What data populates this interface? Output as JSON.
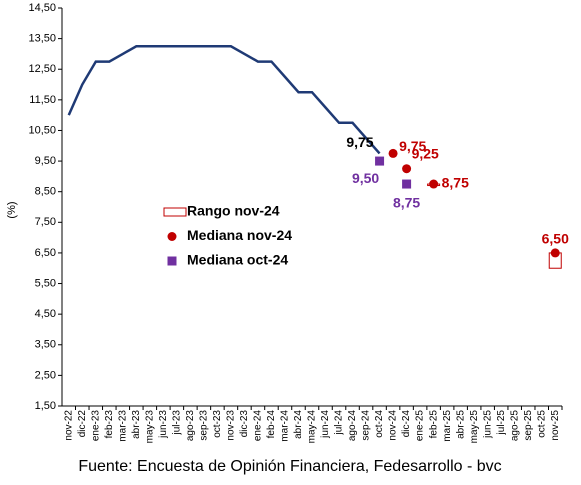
{
  "chart_data": {
    "type": "line",
    "y_axis_label": "(%)",
    "source": "Fuente: Encuesta de Opinión Financiera, Fedesarrollo - bvc",
    "categories": [
      "nov-22",
      "dic-22",
      "ene-23",
      "feb-23",
      "mar-23",
      "abr-23",
      "may-23",
      "jun-23",
      "jul-23",
      "ago-23",
      "sep-23",
      "oct-23",
      "nov-23",
      "dic-23",
      "ene-24",
      "feb-24",
      "mar-24",
      "abr-24",
      "may-24",
      "jun-24",
      "jul-24",
      "ago-24",
      "sep-24",
      "oct-24",
      "nov-24",
      "dic-24",
      "ene-25",
      "feb-25",
      "mar-25",
      "abr-25",
      "may-25",
      "jun-25",
      "jul-25",
      "ago-25",
      "sep-25",
      "oct-25",
      "nov-25"
    ],
    "ylim": [
      1.5,
      14.5
    ],
    "yticks": [
      {
        "value": 1.5,
        "label": "1,50"
      },
      {
        "value": 2.5,
        "label": "2,50"
      },
      {
        "value": 3.5,
        "label": "3,50"
      },
      {
        "value": 4.5,
        "label": "4,50"
      },
      {
        "value": 5.5,
        "label": "5,50"
      },
      {
        "value": 6.5,
        "label": "6,50"
      },
      {
        "value": 7.5,
        "label": "7,50"
      },
      {
        "value": 8.5,
        "label": "8,50"
      },
      {
        "value": 9.5,
        "label": "9,50"
      },
      {
        "value": 10.5,
        "label": "10,50"
      },
      {
        "value": 11.5,
        "label": "11,50"
      },
      {
        "value": 12.5,
        "label": "12,50"
      },
      {
        "value": 13.5,
        "label": "13,50"
      },
      {
        "value": 14.5,
        "label": "14,50"
      }
    ],
    "grid": false,
    "series": [
      {
        "type": "line",
        "color": "#1f3a75",
        "values": [
          11.0,
          12.0,
          12.75,
          12.75,
          13.0,
          13.25,
          13.25,
          13.25,
          13.25,
          13.25,
          13.25,
          13.25,
          13.25,
          13.0,
          12.75,
          12.75,
          12.25,
          11.75,
          11.75,
          11.25,
          10.75,
          10.75,
          10.25,
          9.75,
          null,
          null,
          null,
          null,
          null,
          null,
          null,
          null,
          null,
          null,
          null,
          null,
          null
        ],
        "value_labels": [
          null,
          null,
          null,
          null,
          null,
          null,
          null,
          null,
          null,
          null,
          null,
          null,
          null,
          null,
          null,
          null,
          null,
          null,
          null,
          null,
          null,
          null,
          null,
          "9,75",
          null,
          null,
          null,
          null,
          null,
          null,
          null,
          null,
          null,
          null,
          null,
          null,
          null
        ],
        "label_color": "#000000"
      },
      {
        "type": "range",
        "name": "Rango nov-24",
        "color": "#c00000",
        "low": [
          null,
          null,
          null,
          null,
          null,
          null,
          null,
          null,
          null,
          null,
          null,
          null,
          null,
          null,
          null,
          null,
          null,
          null,
          null,
          null,
          null,
          null,
          null,
          null,
          null,
          null,
          null,
          8.75,
          null,
          null,
          null,
          null,
          null,
          null,
          null,
          null,
          6.0
        ],
        "high": [
          null,
          null,
          null,
          null,
          null,
          null,
          null,
          null,
          null,
          null,
          null,
          null,
          null,
          null,
          null,
          null,
          null,
          null,
          null,
          null,
          null,
          null,
          null,
          null,
          null,
          null,
          null,
          8.75,
          null,
          null,
          null,
          null,
          null,
          null,
          null,
          null,
          6.5
        ]
      },
      {
        "type": "dot",
        "name": "Mediana nov-24",
        "color": "#c00000",
        "values": [
          null,
          null,
          null,
          null,
          null,
          null,
          null,
          null,
          null,
          null,
          null,
          null,
          null,
          null,
          null,
          null,
          null,
          null,
          null,
          null,
          null,
          null,
          null,
          null,
          9.75,
          9.25,
          null,
          8.75,
          null,
          null,
          null,
          null,
          null,
          null,
          null,
          null,
          6.5
        ],
        "value_labels": [
          null,
          null,
          null,
          null,
          null,
          null,
          null,
          null,
          null,
          null,
          null,
          null,
          null,
          null,
          null,
          null,
          null,
          null,
          null,
          null,
          null,
          null,
          null,
          null,
          "9,75",
          "9,25",
          null,
          "8,75",
          null,
          null,
          null,
          null,
          null,
          null,
          null,
          null,
          "6,50"
        ],
        "label_color": "#c00000"
      },
      {
        "type": "square",
        "name": "Mediana oct-24",
        "color": "#7030a0",
        "values": [
          null,
          null,
          null,
          null,
          null,
          null,
          null,
          null,
          null,
          null,
          null,
          null,
          null,
          null,
          null,
          null,
          null,
          null,
          null,
          null,
          null,
          null,
          null,
          9.5,
          null,
          8.75,
          null,
          null,
          null,
          null,
          null,
          null,
          null,
          null,
          null,
          null,
          null
        ],
        "value_labels": [
          null,
          null,
          null,
          null,
          null,
          null,
          null,
          null,
          null,
          null,
          null,
          null,
          null,
          null,
          null,
          null,
          null,
          null,
          null,
          null,
          null,
          null,
          null,
          "9,50",
          null,
          "8,75",
          null,
          null,
          null,
          null,
          null,
          null,
          null,
          null,
          null,
          null,
          null
        ],
        "label_color": "#7030a0"
      }
    ]
  }
}
